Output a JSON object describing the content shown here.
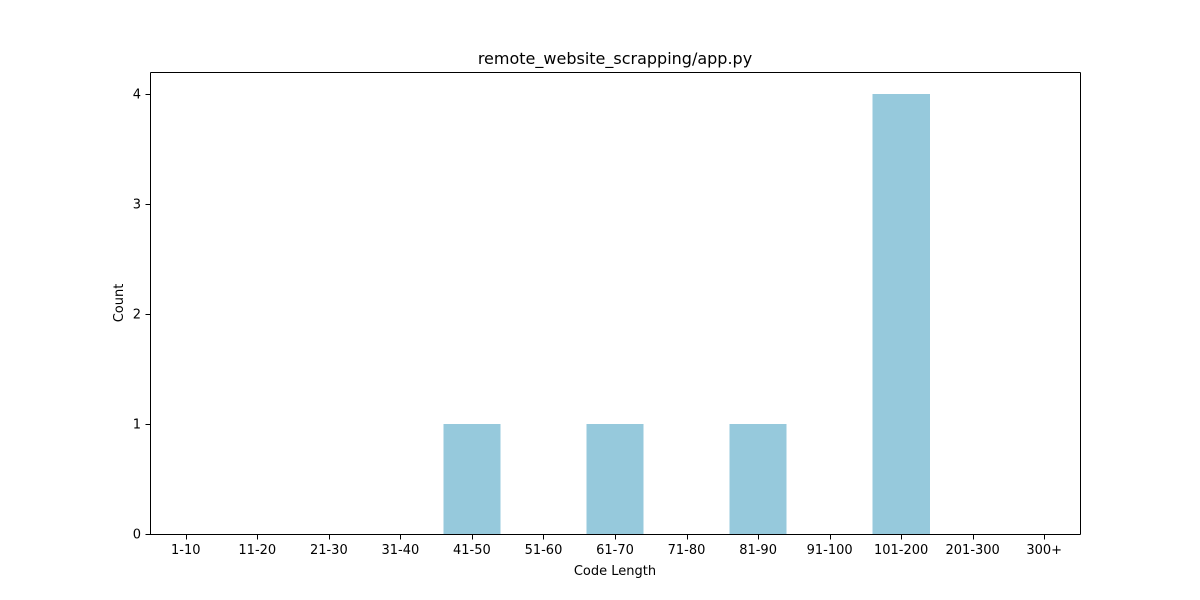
{
  "chart_data": {
    "type": "bar",
    "title": "remote_website_scrapping/app.py",
    "xlabel": "Code Length",
    "ylabel": "Count",
    "categories": [
      "1-10",
      "11-20",
      "21-30",
      "31-40",
      "41-50",
      "51-60",
      "61-70",
      "71-80",
      "81-90",
      "91-100",
      "101-200",
      "201-300",
      "300+"
    ],
    "values": [
      0,
      0,
      0,
      0,
      1,
      0,
      1,
      0,
      1,
      0,
      4,
      0,
      0
    ],
    "ylim": [
      0,
      4.2
    ],
    "yticks": [
      0,
      1,
      2,
      3,
      4
    ],
    "bar_color": "#96c9dc",
    "grid": false,
    "legend": "none"
  }
}
